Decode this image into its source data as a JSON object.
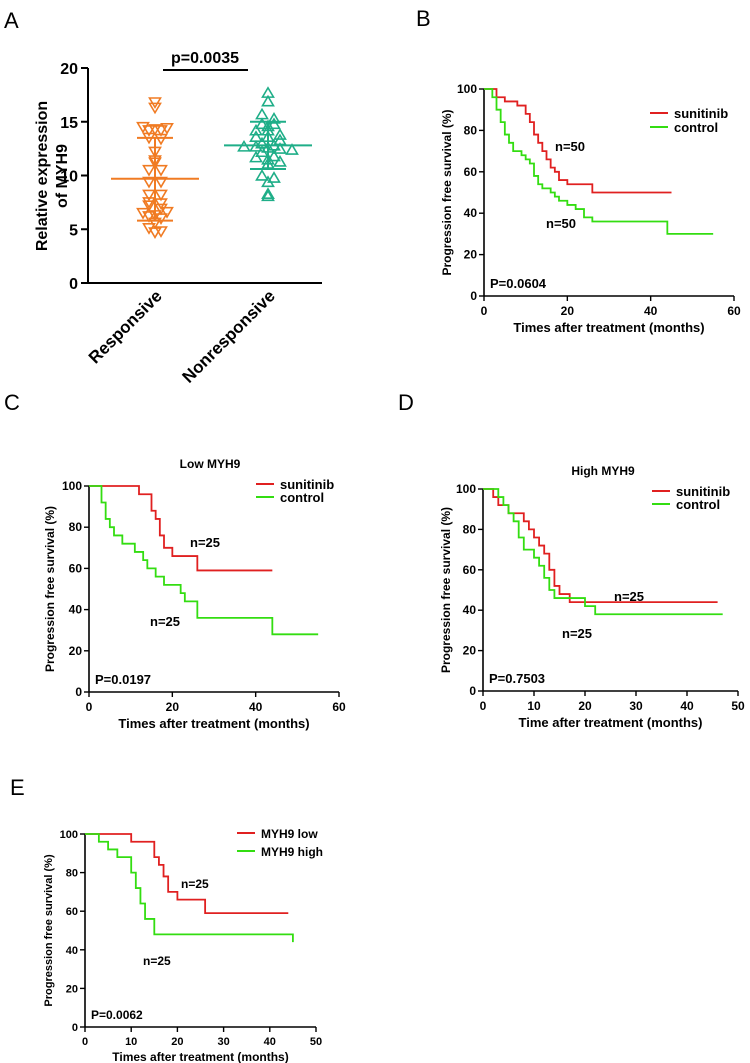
{
  "colors": {
    "responsive": "#F07B23",
    "nonresponsive": "#1FAE88",
    "sunitinib": "#E02020",
    "control": "#33DD11",
    "axis": "#000000"
  },
  "chart_data": [
    {
      "panel": "A",
      "type": "scatter",
      "title": "",
      "ylabel": "Relative expression of MYH9",
      "ylim": [
        0,
        20
      ],
      "yticks": [
        "0",
        "5",
        "10",
        "15",
        "20"
      ],
      "categories": [
        "Responsive",
        "Nonresponsive"
      ],
      "significance": "p=0.0035",
      "series": [
        {
          "name": "Responsive",
          "marker": "triangle-down",
          "values": [
            16.8,
            16.3,
            14.5,
            14.3,
            14.2,
            14.2,
            14.4,
            13.5,
            13.4,
            12.2,
            11.4,
            11.2,
            10.5,
            10.5,
            9.4,
            9.4,
            8.2,
            8.2,
            7.5,
            7.4,
            7.2,
            6.9,
            6.5,
            6.3,
            6.2,
            6.6,
            6.0,
            5.6,
            5.1,
            4.8,
            4.7
          ],
          "mean": 9.7,
          "sd_low": 5.8,
          "sd_high": 13.5
        },
        {
          "name": "Nonresponsive",
          "marker": "triangle-up",
          "values": [
            17.7,
            16.9,
            15.7,
            15.3,
            14.8,
            14.8,
            14.6,
            14.2,
            14.2,
            13.8,
            13.6,
            13.6,
            13.3,
            13.0,
            12.8,
            12.7,
            12.7,
            12.6,
            12.5,
            12.4,
            12.2,
            11.8,
            11.7,
            11.5,
            11.3,
            11.1,
            10.0,
            9.8,
            9.4,
            8.3,
            8.1
          ],
          "mean": 12.8,
          "sd_low": 10.6,
          "sd_high": 15.0
        }
      ]
    },
    {
      "panel": "B",
      "type": "line",
      "title": "",
      "xlabel": "Times after treatment (months)",
      "ylabel": "Progression free survival (%)",
      "xlim": [
        0,
        60
      ],
      "ylim": [
        0,
        100
      ],
      "xticks": [
        "0",
        "20",
        "40",
        "60"
      ],
      "yticks": [
        "0",
        "20",
        "40",
        "60",
        "80",
        "100"
      ],
      "pvalue": "P=0.0604",
      "series": [
        {
          "name": "sunitinib",
          "n_label": "n=50",
          "x": [
            0,
            3,
            5,
            8,
            10,
            11,
            12,
            13,
            14,
            15,
            16,
            17,
            18,
            20,
            22,
            26,
            45
          ],
          "y": [
            100,
            96,
            94,
            92,
            88,
            84,
            78,
            74,
            70,
            66,
            62,
            60,
            56,
            54,
            54,
            50,
            50
          ]
        },
        {
          "name": "control",
          "n_label": "n=50",
          "x": [
            0,
            2,
            3,
            4,
            5,
            6,
            7,
            9,
            10,
            11,
            12,
            13,
            14,
            16,
            17,
            18,
            20,
            22,
            24,
            26,
            30,
            44,
            55
          ],
          "y": [
            100,
            96,
            90,
            84,
            78,
            74,
            70,
            68,
            66,
            64,
            58,
            54,
            52,
            50,
            48,
            46,
            44,
            42,
            38,
            36,
            36,
            30,
            30
          ]
        }
      ]
    },
    {
      "panel": "C",
      "type": "line",
      "title": "Low MYH9",
      "xlabel": "Times after treatment (months)",
      "ylabel": "Progression free survival (%)",
      "xlim": [
        0,
        60
      ],
      "ylim": [
        0,
        100
      ],
      "xticks": [
        "0",
        "20",
        "40",
        "60"
      ],
      "yticks": [
        "0",
        "20",
        "40",
        "60",
        "80",
        "100"
      ],
      "pvalue": "P=0.0197",
      "series": [
        {
          "name": "sunitinib",
          "n_label": "n=25",
          "x": [
            0,
            12,
            15,
            16,
            17,
            18,
            20,
            26,
            44
          ],
          "y": [
            100,
            96,
            88,
            84,
            76,
            70,
            66,
            59,
            59
          ]
        },
        {
          "name": "control",
          "n_label": "n=25",
          "x": [
            0,
            3,
            4,
            5,
            6,
            8,
            10,
            11,
            13,
            14,
            16,
            18,
            22,
            23,
            26,
            44,
            55
          ],
          "y": [
            100,
            92,
            84,
            80,
            76,
            72,
            72,
            68,
            64,
            60,
            56,
            52,
            48,
            44,
            36,
            28,
            28
          ]
        }
      ]
    },
    {
      "panel": "D",
      "type": "line",
      "title": "High MYH9",
      "xlabel": "Time after treatment (months)",
      "ylabel": "Progression free survival (%)",
      "xlim": [
        0,
        50
      ],
      "ylim": [
        0,
        100
      ],
      "xticks": [
        "0",
        "10",
        "20",
        "30",
        "40",
        "50"
      ],
      "yticks": [
        "0",
        "20",
        "40",
        "60",
        "80",
        "100"
      ],
      "pvalue": "P=0.7503",
      "series": [
        {
          "name": "sunitinib",
          "n_label": "n=25",
          "x": [
            0,
            2,
            3,
            5,
            7,
            8,
            9,
            10,
            11,
            12,
            13,
            14,
            15,
            17,
            19,
            22,
            46
          ],
          "y": [
            100,
            96,
            92,
            88,
            88,
            84,
            80,
            76,
            72,
            68,
            60,
            52,
            48,
            44,
            44,
            44,
            44
          ]
        },
        {
          "name": "control",
          "n_label": "n=25",
          "x": [
            0,
            3,
            4,
            5,
            6,
            7,
            8,
            10,
            11,
            12,
            13,
            14,
            17,
            20,
            22,
            47
          ],
          "y": [
            100,
            96,
            92,
            88,
            84,
            76,
            70,
            66,
            62,
            56,
            50,
            46,
            46,
            42,
            38,
            38
          ]
        }
      ]
    },
    {
      "panel": "E",
      "type": "line",
      "title": "",
      "xlabel": "Times after treatment (months)",
      "ylabel": "Progression free survival (%)",
      "xlim": [
        0,
        50
      ],
      "ylim": [
        0,
        100
      ],
      "xticks": [
        "0",
        "10",
        "20",
        "30",
        "40",
        "50"
      ],
      "yticks": [
        "0",
        "20",
        "40",
        "60",
        "80",
        "100"
      ],
      "pvalue": "P=0.0062",
      "series": [
        {
          "name": "MYH9 low",
          "n_label": "n=25",
          "x": [
            0,
            10,
            15,
            16,
            17,
            18,
            20,
            26,
            44
          ],
          "y": [
            100,
            96,
            88,
            84,
            78,
            70,
            66,
            59,
            59
          ]
        },
        {
          "name": "MYH9 high",
          "n_label": "n=25",
          "x": [
            0,
            3,
            5,
            7,
            8,
            10,
            11,
            12,
            13,
            15,
            45
          ],
          "y": [
            100,
            96,
            92,
            88,
            88,
            80,
            72,
            64,
            56,
            48,
            44
          ]
        }
      ]
    }
  ]
}
